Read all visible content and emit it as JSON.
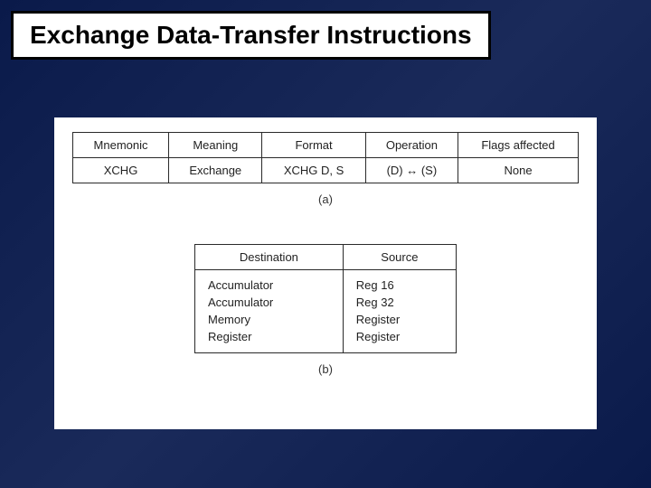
{
  "title": "Exchange Data-Transfer Instructions",
  "colors": {
    "background_gradient_from": "#0a1a4a",
    "background_gradient_mid": "#1a2a5a",
    "background_gradient_to": "#0a1a4a",
    "panel_bg": "#ffffff",
    "border": "#000000",
    "text": "#000000",
    "table_border": "#2a2a2a"
  },
  "typography": {
    "title_font": "Comic Sans MS",
    "title_fontsize": 28,
    "title_weight": "bold",
    "table_font": "Helvetica",
    "table_fontsize": 13
  },
  "table_a": {
    "type": "table",
    "columns": [
      "Mnemonic",
      "Meaning",
      "Format",
      "Operation",
      "Flags affected"
    ],
    "rows": [
      [
        "XCHG",
        "Exchange",
        "XCHG D, S",
        "(D) ↔ (S)",
        "None"
      ]
    ],
    "caption": "(a)"
  },
  "table_b": {
    "type": "table",
    "columns": [
      "Destination",
      "Source"
    ],
    "rows": [
      [
        "Accumulator",
        "Reg 16"
      ],
      [
        "Accumulator",
        "Reg 32"
      ],
      [
        "Memory",
        "Register"
      ],
      [
        "Register",
        "Register"
      ]
    ],
    "caption": "(b)"
  }
}
